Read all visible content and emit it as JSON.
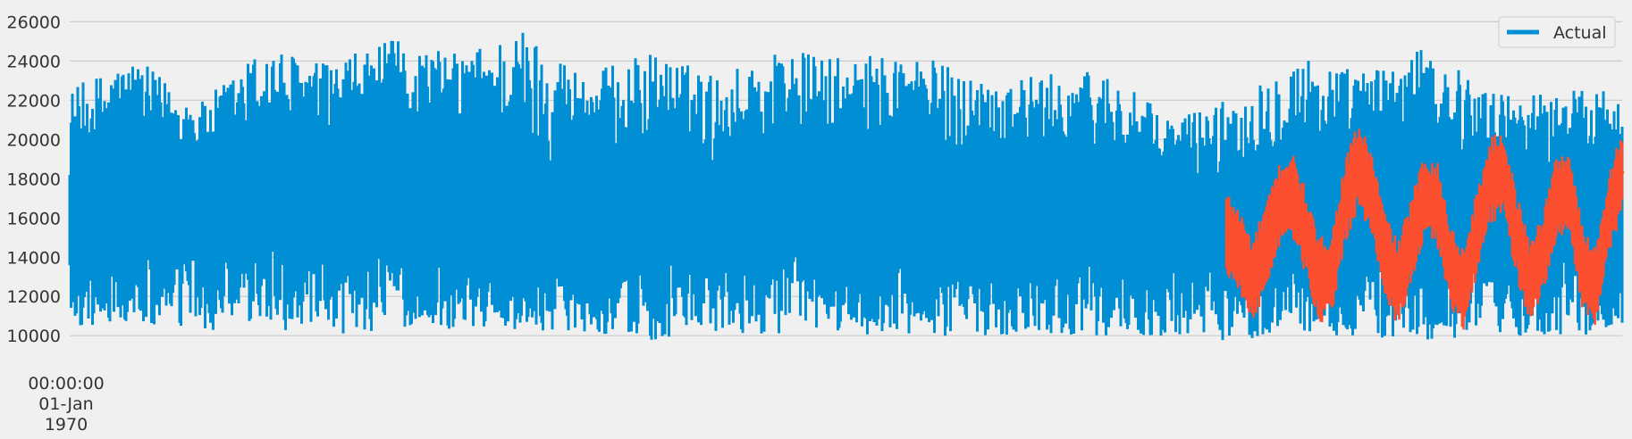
{
  "chart_data": {
    "type": "line",
    "title": "",
    "xlabel": "",
    "ylabel": "",
    "ylim": [
      9600,
      26200
    ],
    "y_ticks": [
      10000,
      12000,
      14000,
      16000,
      18000,
      20000,
      22000,
      24000,
      26000
    ],
    "x_tick_label": [
      "00:00:00",
      "01-Jan",
      "1970"
    ],
    "grid": "horizontal",
    "legend": {
      "placement": "top-right",
      "entries": [
        "Actual"
      ]
    },
    "colors": {
      "actual": "#008fd5",
      "prediction": "#fc4f30",
      "grid": "#cbcbcb",
      "background": "#f0f0f0"
    },
    "series": [
      {
        "name": "Actual",
        "x_range": [
          0,
          1
        ],
        "values": [
          15500,
          16200,
          17400,
          16500,
          15800,
          16700,
          17200,
          16300,
          15900,
          16800,
          17600,
          16900,
          16200,
          16800,
          17700,
          17300,
          16500,
          16200,
          16800,
          17300,
          16600,
          16000,
          15300,
          15600,
          16300,
          16900,
          16200,
          15800,
          16400,
          17100,
          16300,
          15700,
          15300,
          16000,
          16800,
          16300,
          15800,
          15400,
          15900,
          16600,
          16000,
          15500,
          15900,
          16700,
          17300,
          16600,
          15900,
          16400,
          17000,
          16300,
          15700,
          15200,
          15900,
          16500,
          16000,
          15500,
          15800,
          16500,
          16900,
          16200,
          15500,
          15800,
          16600,
          17200,
          16500,
          15800,
          16200,
          17100,
          17500,
          16600,
          15900,
          16400,
          17300,
          17600,
          16800
        ],
        "peaks": [
          22600,
          24200,
          21800,
          24800,
          23900,
          25100,
          24400,
          25700,
          23400,
          24500,
          23300,
          24700,
          24100,
          24600,
          23200,
          23300,
          23600,
          21100,
          22200,
          24400,
          23500,
          24700,
          22400,
          22500,
          22700
        ],
        "troughs": [
          10400,
          10500,
          10100,
          10500,
          9800,
          10400,
          10300,
          10300,
          10200,
          9700,
          10000,
          10100,
          10200,
          9800,
          10000,
          10100,
          10000,
          9900,
          9700,
          10200,
          9800,
          9700,
          9900,
          10000,
          10100
        ]
      },
      {
        "name": "",
        "x_range": [
          0.745,
          1
        ],
        "values": [
          15200,
          14300,
          12700,
          14600,
          16600,
          17200,
          15300,
          12800,
          13100,
          16800,
          18700,
          17300,
          14200,
          12600,
          14800,
          17100,
          16700,
          13500,
          12300,
          15300,
          17900,
          18300,
          15100,
          12700,
          14200,
          17000,
          17300,
          13400,
          12500,
          16200,
          18400
        ]
      }
    ]
  }
}
